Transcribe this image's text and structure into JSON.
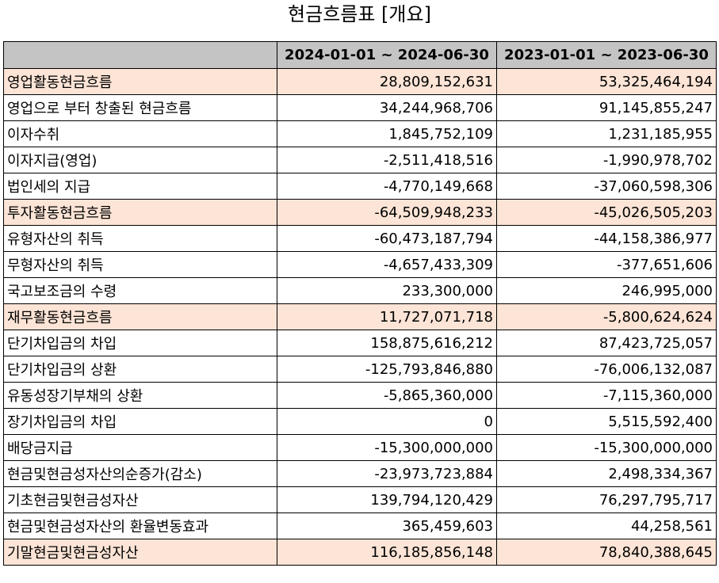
{
  "title": "현금흐름표 [개요]",
  "columns": [
    "2024-01-01 ~ 2024-06-30",
    "2023-01-01 ~ 2023-06-30"
  ],
  "rows": [
    {
      "label": "영업활동현금흐름",
      "v1": "28,809,152,631",
      "v2": "53,325,464,194",
      "main": true,
      "indent": false
    },
    {
      "label": "영업으로 부터 창출된 현금흐름",
      "v1": "34,244,968,706",
      "v2": "91,145,855,247",
      "main": false,
      "indent": true
    },
    {
      "label": "이자수취",
      "v1": "1,845,752,109",
      "v2": "1,231,185,955",
      "main": false,
      "indent": true
    },
    {
      "label": "이자지급(영업)",
      "v1": "-2,511,418,516",
      "v2": "-1,990,978,702",
      "main": false,
      "indent": true
    },
    {
      "label": "법인세의 지급",
      "v1": "-4,770,149,668",
      "v2": "-37,060,598,306",
      "main": false,
      "indent": true
    },
    {
      "label": "투자활동현금흐름",
      "v1": "-64,509,948,233",
      "v2": "-45,026,505,203",
      "main": true,
      "indent": false
    },
    {
      "label": "유형자산의 취득",
      "v1": "-60,473,187,794",
      "v2": "-44,158,386,977",
      "main": false,
      "indent": true
    },
    {
      "label": "무형자산의 취득",
      "v1": "-4,657,433,309",
      "v2": "-377,651,606",
      "main": false,
      "indent": true
    },
    {
      "label": "국고보조금의 수령",
      "v1": "233,300,000",
      "v2": "246,995,000",
      "main": false,
      "indent": true
    },
    {
      "label": "재무활동현금흐름",
      "v1": "11,727,071,718",
      "v2": "-5,800,624,624",
      "main": true,
      "indent": false
    },
    {
      "label": "단기차입금의 차입",
      "v1": "158,875,616,212",
      "v2": "87,423,725,057",
      "main": false,
      "indent": true
    },
    {
      "label": "단기차입금의 상환",
      "v1": "-125,793,846,880",
      "v2": "-76,006,132,087",
      "main": false,
      "indent": true
    },
    {
      "label": "유동성장기부채의 상환",
      "v1": "-5,865,360,000",
      "v2": "-7,115,360,000",
      "main": false,
      "indent": true
    },
    {
      "label": "장기차입금의 차입",
      "v1": "0",
      "v2": "5,515,592,400",
      "main": false,
      "indent": true
    },
    {
      "label": "배당금지급",
      "v1": "-15,300,000,000",
      "v2": "-15,300,000,000",
      "main": false,
      "indent": true
    },
    {
      "label": "현금및현금성자산의순증가(감소)",
      "v1": "-23,973,723,884",
      "v2": "2,498,334,367",
      "main": false,
      "indent": false
    },
    {
      "label": "기초현금및현금성자산",
      "v1": "139,794,120,429",
      "v2": "76,297,795,717",
      "main": false,
      "indent": false
    },
    {
      "label": "현금및현금성자산의 환율변동효과",
      "v1": "365,459,603",
      "v2": "44,258,561",
      "main": false,
      "indent": false
    },
    {
      "label": "기말현금및현금성자산",
      "v1": "116,185,856,148",
      "v2": "78,840,388,645",
      "main": true,
      "indent": false
    }
  ]
}
